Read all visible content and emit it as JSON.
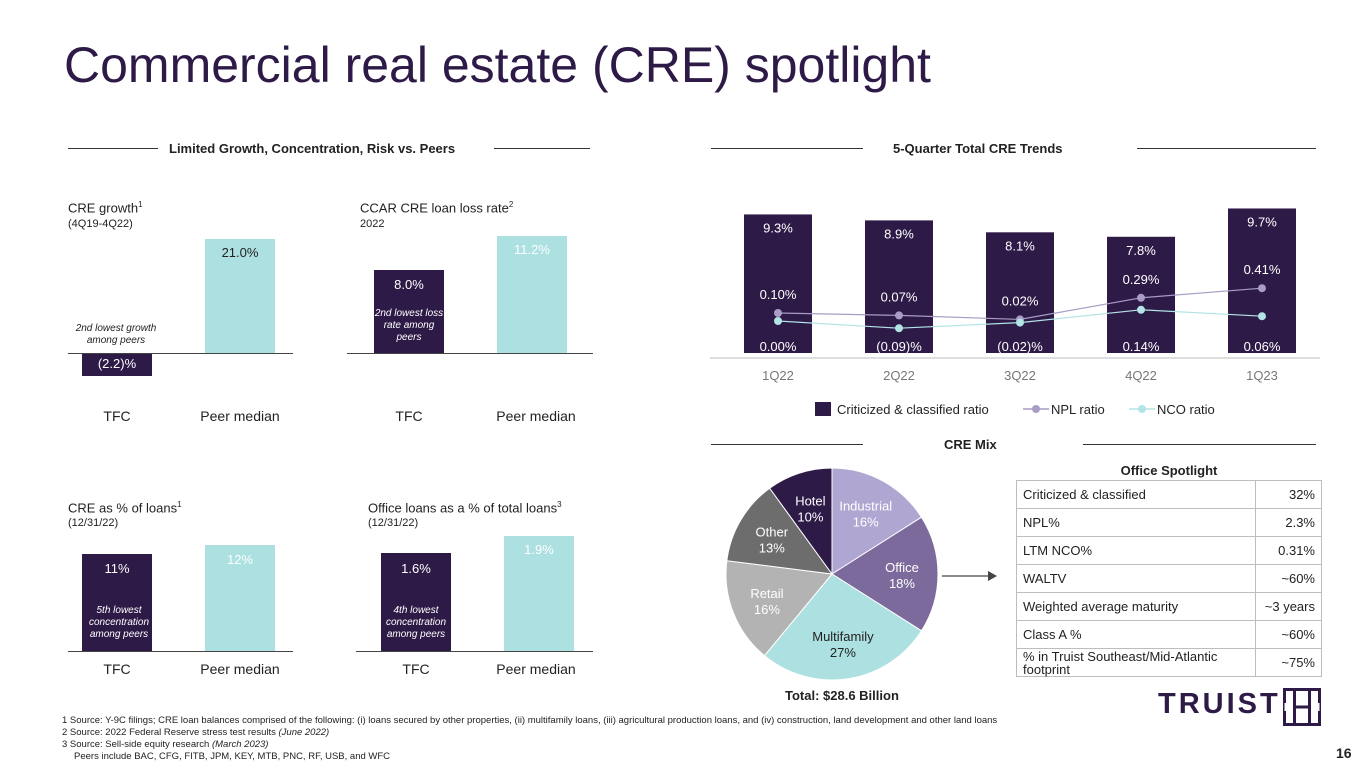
{
  "title": "Commercial real estate (CRE) spotlight",
  "left_section_header": "Limited Growth, Concentration, Risk vs. Peers",
  "right_top_header": "5-Quarter Total CRE Trends",
  "right_bottom_header": "CRE Mix",
  "mini_charts": {
    "cre_growth": {
      "title": "CRE growth",
      "sup": "1",
      "subtitle": "(4Q19-4Q22)",
      "tfc_value": "(2.2)%",
      "peer_value": "21.0%",
      "note": "2nd lowest growth among peers",
      "x_tfc": "TFC",
      "x_peer": "Peer median"
    },
    "ccar": {
      "title": "CCAR CRE loan loss rate",
      "sup": "2",
      "subtitle": "2022",
      "tfc_value": "8.0%",
      "peer_value": "11.2%",
      "note": "2nd lowest loss rate among peers",
      "x_tfc": "TFC",
      "x_peer": "Peer median"
    },
    "cre_pct": {
      "title": "CRE as % of loans",
      "sup": "1",
      "subtitle": "(12/31/22)",
      "tfc_value": "11%",
      "peer_value": "12%",
      "note": "5th lowest concentration among peers",
      "x_tfc": "TFC",
      "x_peer": "Peer median"
    },
    "office_pct": {
      "title": "Office loans as a % of total loans",
      "sup": "3",
      "subtitle": "(12/31/22)",
      "tfc_value": "1.6%",
      "peer_value": "1.9%",
      "note": "4th lowest concentration among peers",
      "x_tfc": "TFC",
      "x_peer": "Peer median"
    }
  },
  "chart_data": [
    {
      "type": "bar",
      "title": "CRE growth",
      "categories": [
        "TFC",
        "Peer median"
      ],
      "values": [
        -2.2,
        21.0
      ]
    },
    {
      "type": "bar",
      "title": "CCAR CRE loan loss rate",
      "categories": [
        "TFC",
        "Peer median"
      ],
      "values": [
        8.0,
        11.2
      ]
    },
    {
      "type": "bar",
      "title": "CRE as % of loans",
      "categories": [
        "TFC",
        "Peer median"
      ],
      "values": [
        11,
        12
      ]
    },
    {
      "type": "bar",
      "title": "Office loans as a % of total loans",
      "categories": [
        "TFC",
        "Peer median"
      ],
      "values": [
        1.6,
        1.9
      ]
    },
    {
      "type": "bar",
      "title": "5-Quarter Total CRE Trends",
      "categories": [
        "1Q22",
        "2Q22",
        "3Q22",
        "4Q22",
        "1Q23"
      ],
      "series": [
        {
          "name": "Criticized & classified ratio",
          "values": [
            9.3,
            8.9,
            8.1,
            7.8,
            9.7
          ],
          "labels": [
            "9.3%",
            "8.9%",
            "8.1%",
            "7.8%",
            "9.7%"
          ],
          "color": "#2e1a47"
        },
        {
          "name": "NPL ratio",
          "values": [
            0.1,
            0.07,
            0.02,
            0.29,
            0.41
          ],
          "labels": [
            "0.10%",
            "0.07%",
            "0.02%",
            "0.29%",
            "0.41%"
          ],
          "color": "#a99cc6"
        },
        {
          "name": "NCO ratio",
          "values": [
            0.0,
            -0.09,
            -0.02,
            0.14,
            0.06
          ],
          "labels": [
            "0.00%",
            "(0.09)%",
            "(0.02)%",
            "0.14%",
            "0.06%"
          ],
          "color": "#b3e4e6"
        }
      ]
    },
    {
      "type": "pie",
      "title": "CRE Mix",
      "total_label": "Total: $28.6 Billion",
      "slices": [
        {
          "name": "Industrial",
          "value": 16,
          "label": "16%",
          "color": "#b0a6d2"
        },
        {
          "name": "Office",
          "value": 18,
          "label": "18%",
          "color": "#7d6a9c"
        },
        {
          "name": "Multifamily",
          "value": 27,
          "label": "27%",
          "color": "#ade0e1"
        },
        {
          "name": "Retail",
          "value": 16,
          "label": "16%",
          "color": "#b3b3b3"
        },
        {
          "name": "Other",
          "value": 13,
          "label": "13%",
          "color": "#6d6d6d"
        },
        {
          "name": "Hotel",
          "value": 10,
          "label": "10%",
          "color": "#2e1a47"
        }
      ]
    }
  ],
  "office_spotlight": {
    "title": "Office Spotlight",
    "rows": [
      {
        "label": "Criticized & classified",
        "value": "32%"
      },
      {
        "label": "NPL%",
        "value": "2.3%"
      },
      {
        "label": "LTM NCO%",
        "value": "0.31%"
      },
      {
        "label": "WALTV",
        "value": "~60%"
      },
      {
        "label": "Weighted average maturity",
        "value": "~3 years"
      },
      {
        "label": "Class A %",
        "value": "~60%"
      },
      {
        "label": "% in Truist Southeast/Mid-Atlantic footprint",
        "value": "~75%"
      }
    ]
  },
  "footnotes": {
    "f1": "1 Source: Y-9C filings; CRE loan balances comprised of the following: (i) loans secured by other properties, (ii) multifamily loans, (iii) agricultural production loans, and (iv) construction, land development and other land loans",
    "f2_main": "2 Source: 2022 Federal Reserve stress test results ",
    "f2_italic": "(June 2022)",
    "f3_main": "3 Source: Sell-side equity research ",
    "f3_italic": "(March 2023)",
    "f4": "Peers include BAC, CFG, FITB, JPM, KEY, MTB, PNC, RF, USB, and WFC"
  },
  "logo_text": "TRUIST",
  "page_number": "16",
  "colors": {
    "brand_purple": "#2e1a47",
    "teal": "#ade0e1",
    "lavender": "#a99cc6"
  }
}
